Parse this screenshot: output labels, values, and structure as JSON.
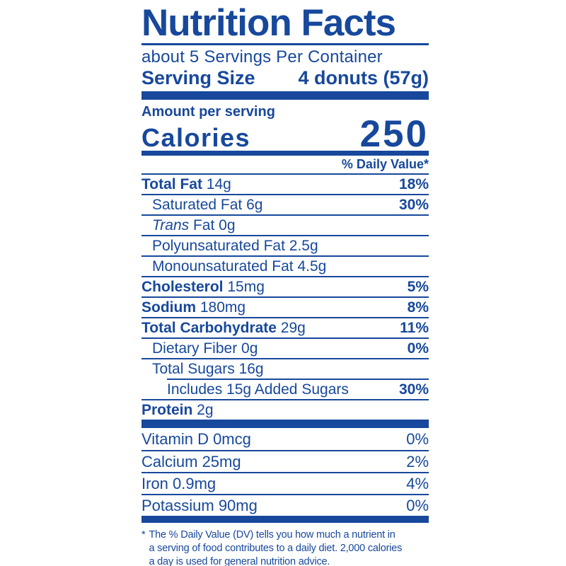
{
  "colors": {
    "brand_blue": "#17489C",
    "background": "#FFFFFF"
  },
  "label": {
    "title": "Nutrition Facts",
    "servings_per_container": "about 5 Servings Per Container",
    "serving_size_label": "Serving Size",
    "serving_size_value": "4 donuts (57g)",
    "amount_per_serving": "Amount per serving",
    "calories_label": "Calories",
    "calories_value": "250",
    "daily_value_header": "% Daily Value*",
    "nutrients": [
      {
        "bold": "Total Fat",
        "rest": " 14g",
        "percent": "18%",
        "percent_bold": true,
        "indent": 0
      },
      {
        "rest": "Saturated Fat 6g",
        "percent": "30%",
        "percent_bold": true,
        "indent": 1
      },
      {
        "italic": "Trans",
        "rest": " Fat 0g",
        "indent": 1
      },
      {
        "rest": "Polyunsaturated Fat 2.5g",
        "indent": 1
      },
      {
        "rest": "Monounsaturated Fat 4.5g",
        "indent": 1
      },
      {
        "bold": "Cholesterol",
        "rest": " 15mg",
        "percent": "5%",
        "percent_bold": true,
        "indent": 0
      },
      {
        "bold": "Sodium",
        "rest": " 180mg",
        "percent": "8%",
        "percent_bold": true,
        "indent": 0
      },
      {
        "bold": "Total Carbohydrate",
        "rest": " 29g",
        "percent": "11%",
        "percent_bold": true,
        "indent": 0
      },
      {
        "rest": "Dietary Fiber 0g",
        "percent": "0%",
        "percent_bold": true,
        "indent": 1
      },
      {
        "rest": "Total Sugars 16g",
        "indent": 1
      },
      {
        "rest": "Includes 15g Added Sugars",
        "percent": "30%",
        "percent_bold": true,
        "indent": 2
      },
      {
        "bold": "Protein",
        "rest": " 2g",
        "indent": 0
      }
    ],
    "vitamins": [
      {
        "rest": "Vitamin D 0mcg",
        "percent": "0%",
        "percent_bold": false
      },
      {
        "rest": "Calcium 25mg",
        "percent": "2%",
        "percent_bold": false
      },
      {
        "rest": "Iron 0.9mg",
        "percent": "4%",
        "percent_bold": false
      },
      {
        "rest": "Potassium 90mg",
        "percent": "0%",
        "percent_bold": false
      }
    ],
    "footnote_marker": "*",
    "footnote_lines": [
      "The % Daily Value (DV) tells you how much a nutrient in",
      "a serving of food contributes to a daily diet. 2,000 calories",
      "a day is used for general nutrition advice."
    ]
  }
}
